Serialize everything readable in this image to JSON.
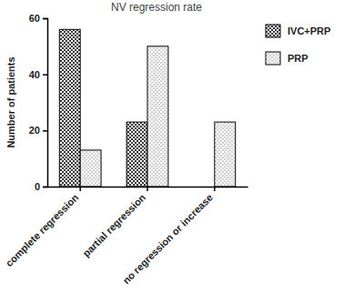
{
  "chart_data": {
    "type": "bar",
    "title": "NV regression rate",
    "y_label": "Number of patients",
    "categories": [
      "complete regression",
      "partial regression",
      "no regression or increase"
    ],
    "series": [
      {
        "name": "IVC+PRP",
        "color": "#3a3a3a",
        "values": [
          56,
          23,
          0
        ]
      },
      {
        "name": "PRP",
        "color": "#9a9a9a",
        "values": [
          13,
          50,
          23
        ]
      }
    ],
    "ylim": [
      0,
      60
    ],
    "yticks": [
      0,
      20,
      40,
      60
    ],
    "grid": false,
    "legend": "top-right"
  }
}
